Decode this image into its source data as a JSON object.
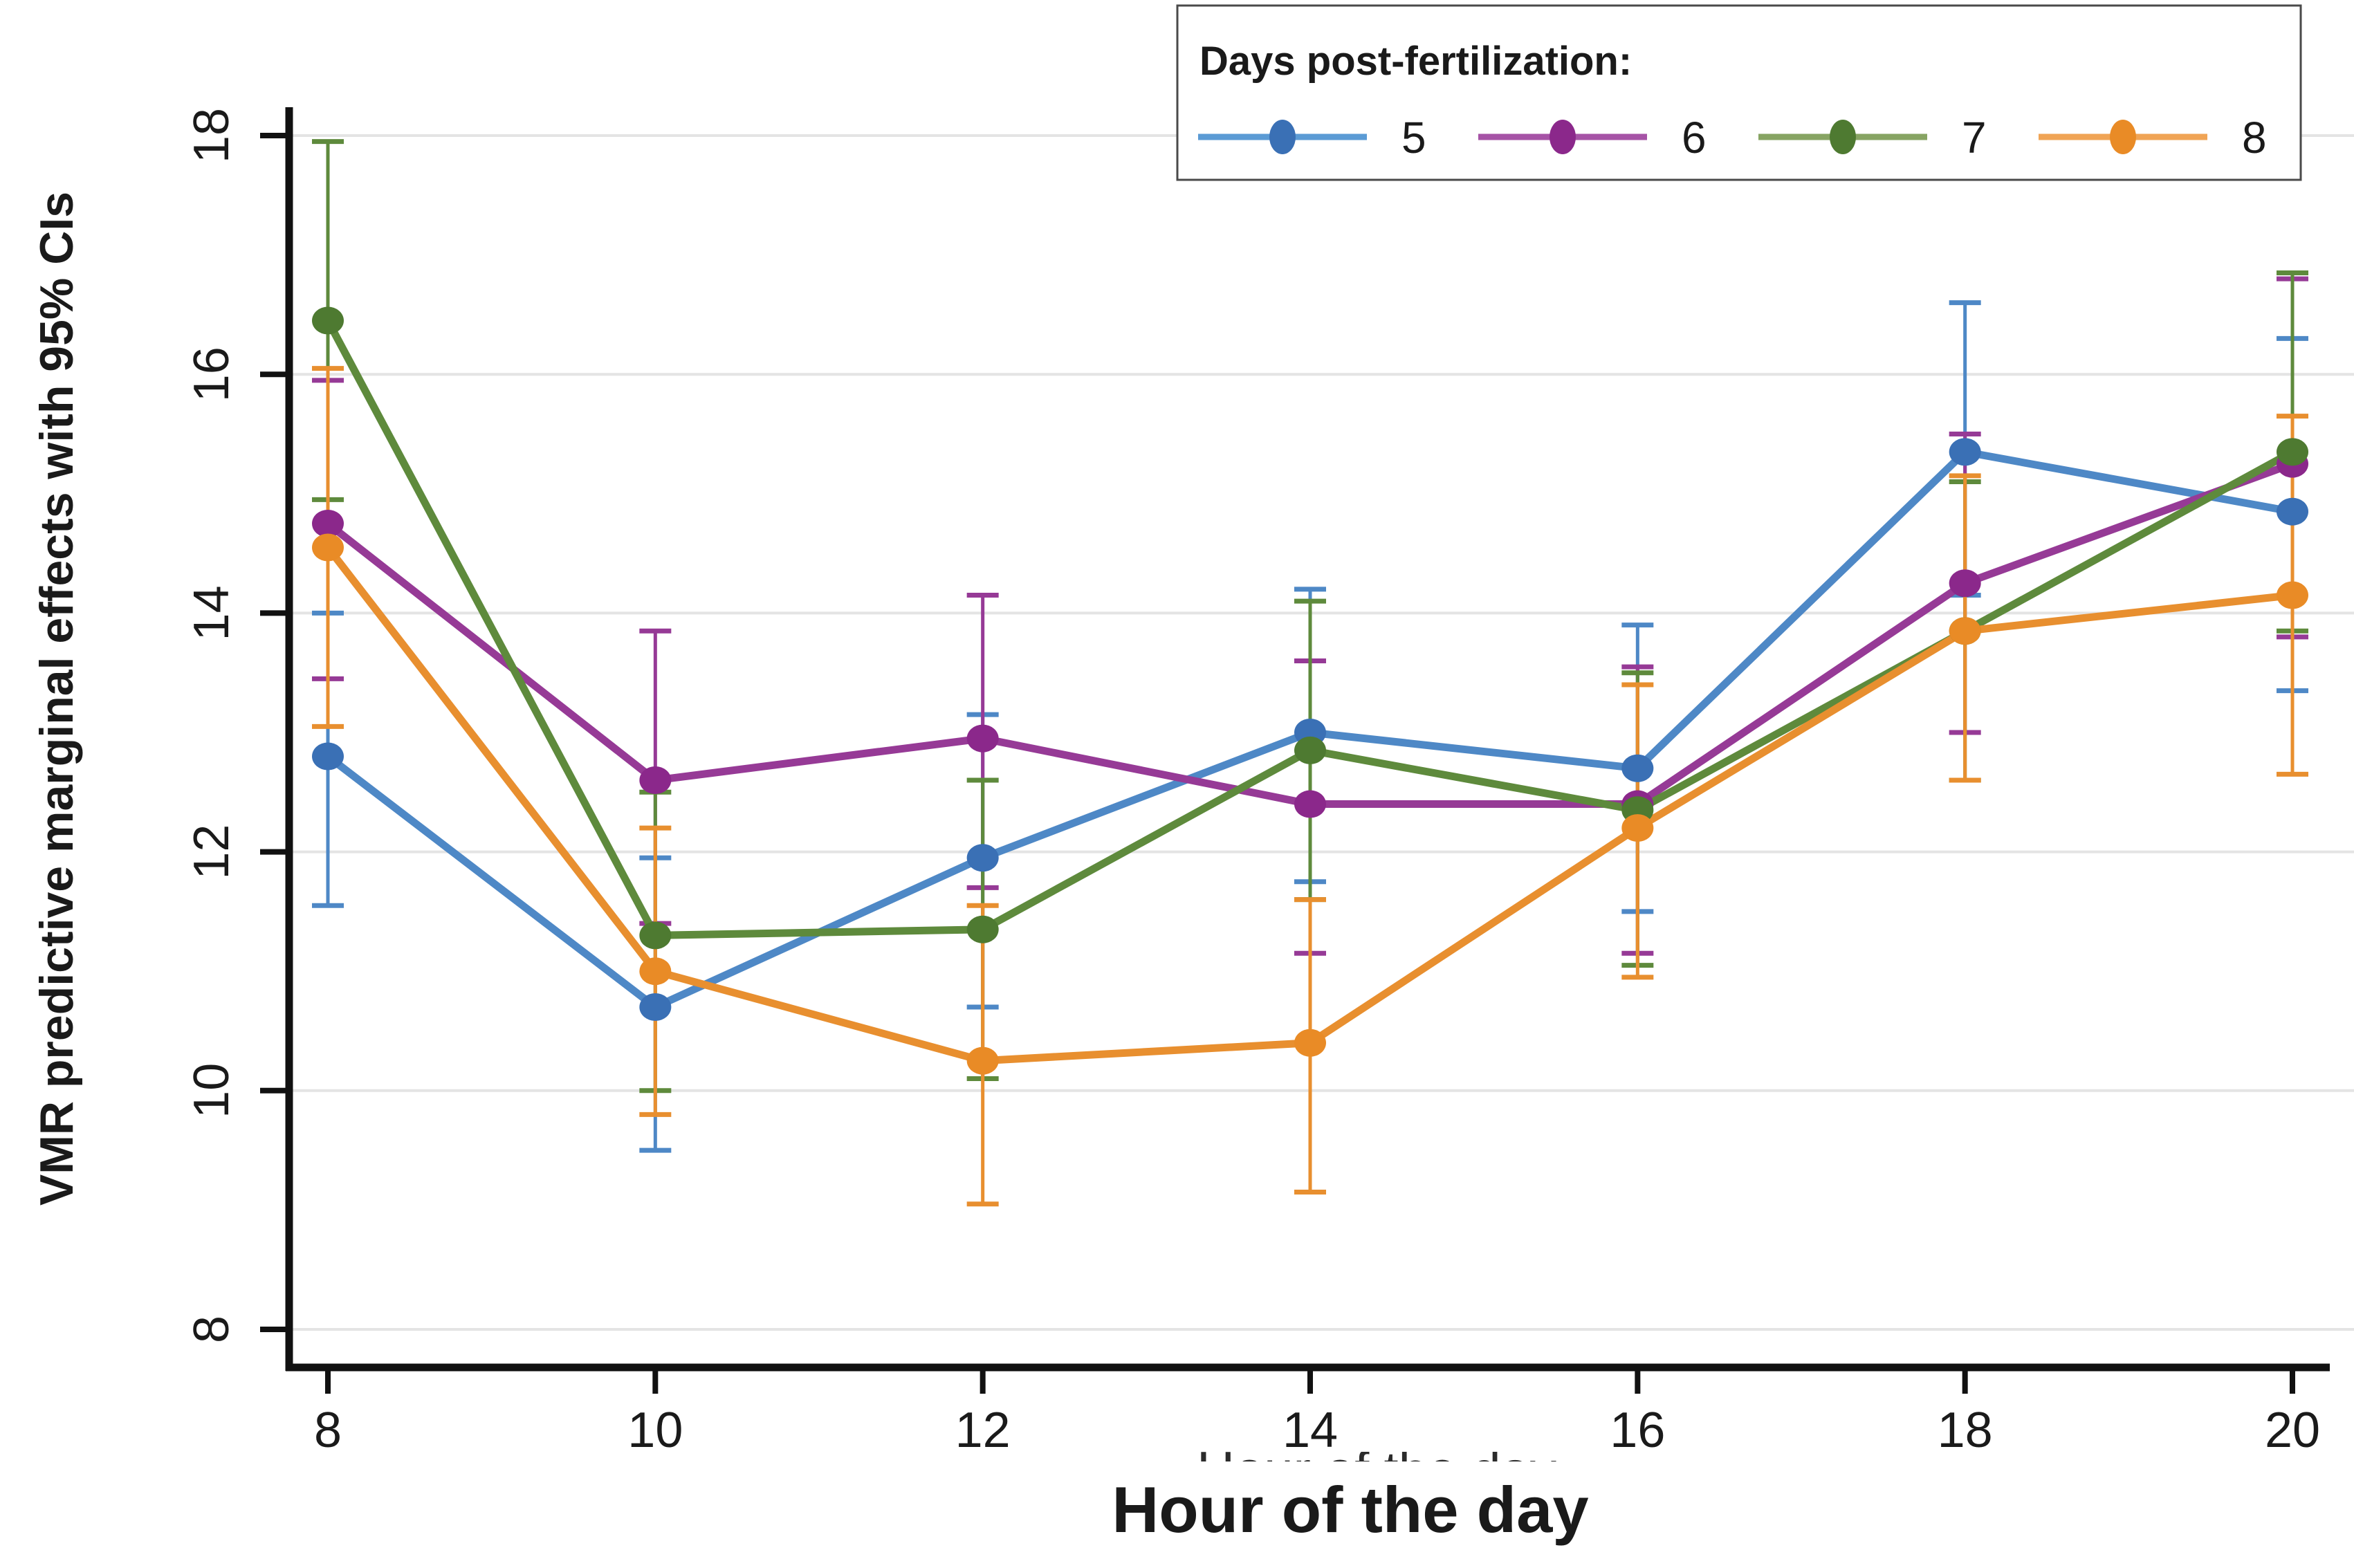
{
  "chart_data": {
    "type": "line",
    "xlabel": "Hour of the day",
    "ylabel": "VMR predictive marginal effects with 95% CIs",
    "clipped_xlabel_artifact": "Hour of the day",
    "legend_title": "Days post-fertilization:",
    "legend_position": "top-right",
    "grid": "horizontal",
    "x": [
      8,
      10,
      12,
      14,
      16,
      18,
      20
    ],
    "xticks": [
      "8",
      "10",
      "12",
      "14",
      "16",
      "18",
      "20"
    ],
    "yticks": [
      "8",
      "10",
      "12",
      "14",
      "16",
      "18"
    ],
    "xlim": [
      7.75,
      20.25
    ],
    "ylim": [
      7.7,
      18.25
    ],
    "colors": {
      "axis": "#111111",
      "tick_label": "#1a1a1a",
      "gridline": "#e4e4e4",
      "legend_border": "#4a4a4a",
      "background": "#ffffff"
    },
    "series": [
      {
        "name": "5",
        "line_color": "#4e88c6",
        "marker_color": "#3a70b5",
        "legend_line_color": "#5b9bd5",
        "values": [
          12.8,
          10.7,
          11.95,
          13.0,
          12.7,
          15.35,
          14.85
        ],
        "ci_low": [
          11.55,
          9.5,
          10.7,
          11.75,
          11.5,
          14.15,
          13.35
        ],
        "ci_high": [
          14.0,
          11.95,
          13.15,
          14.2,
          13.9,
          16.6,
          16.3
        ]
      },
      {
        "name": "6",
        "line_color": "#963a96",
        "marker_color": "#8b288b",
        "legend_line_color": "#a653a6",
        "values": [
          14.75,
          12.6,
          12.95,
          12.4,
          12.4,
          14.25,
          15.25
        ],
        "ci_low": [
          13.45,
          11.4,
          11.7,
          11.15,
          11.15,
          13.0,
          13.8
        ],
        "ci_high": [
          15.95,
          13.85,
          14.15,
          13.6,
          13.55,
          15.5,
          16.8
        ]
      },
      {
        "name": "7",
        "line_color": "#5e8a3c",
        "marker_color": "#4e7a31",
        "legend_line_color": "#87a463",
        "values": [
          16.45,
          11.3,
          11.35,
          12.85,
          12.35,
          13.85,
          15.35
        ],
        "ci_low": [
          14.95,
          10.0,
          10.1,
          11.6,
          11.05,
          12.6,
          13.85
        ],
        "ci_high": [
          17.95,
          12.5,
          12.6,
          14.1,
          13.5,
          15.1,
          16.85
        ]
      },
      {
        "name": "8",
        "line_color": "#e88f2f",
        "marker_color": "#e98b26",
        "legend_line_color": "#f0a455",
        "values": [
          14.55,
          11.0,
          10.25,
          10.4,
          12.2,
          13.85,
          14.15
        ],
        "ci_low": [
          13.05,
          9.8,
          9.05,
          9.15,
          10.95,
          12.6,
          12.65
        ],
        "ci_high": [
          16.05,
          12.2,
          11.55,
          11.6,
          13.4,
          15.15,
          15.65
        ]
      }
    ]
  }
}
